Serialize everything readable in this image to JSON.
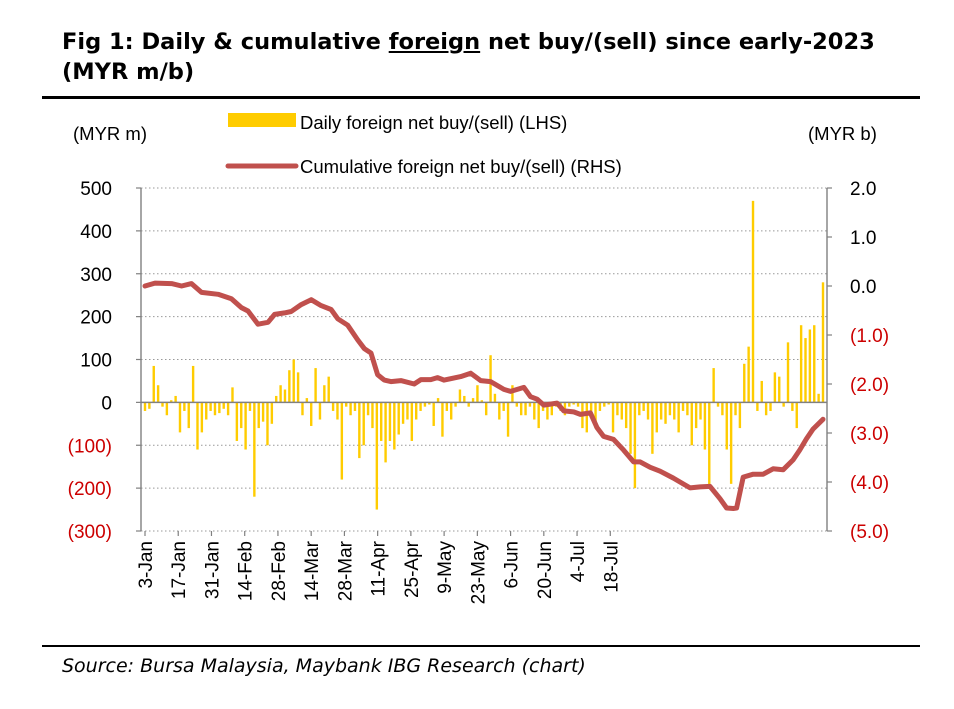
{
  "figure": {
    "title_prefix": "Fig 1: Daily & cumulative ",
    "title_emph": "foreign",
    "title_suffix": " net buy/(sell) since early-2023 (MYR m/b)",
    "source": "Source: Bursa Malaysia, Maybank IBG Research (chart)"
  },
  "chart_data": {
    "type": "bar",
    "left_axis": {
      "unit_label": "(MYR m)",
      "range": [
        -300,
        500
      ],
      "ticks": [
        500,
        400,
        300,
        200,
        100,
        0,
        -100,
        -200,
        -300
      ],
      "tick_labels": [
        "500",
        "400",
        "300",
        "200",
        "100",
        "0",
        "(100)",
        "(200)",
        "(300)"
      ]
    },
    "right_axis": {
      "unit_label": "(MYR b)",
      "range": [
        -5.0,
        2.0
      ],
      "ticks": [
        2.0,
        1.0,
        0.0,
        -1.0,
        -2.0,
        -3.0,
        -4.0,
        -5.0
      ],
      "tick_labels": [
        "2.0",
        "1.0",
        "0.0",
        "(1.0)",
        "(2.0)",
        "(3.0)",
        "(4.0)",
        "(5.0)"
      ]
    },
    "x_tick_labels": [
      "3-Jan",
      "17-Jan",
      "31-Jan",
      "14-Feb",
      "28-Feb",
      "14-Mar",
      "28-Mar",
      "11-Apr",
      "25-Apr",
      "9-May",
      "23-May",
      "6-Jun",
      "20-Jun",
      "4-Jul",
      "18-Jul"
    ],
    "grid": true,
    "legend_position": "top",
    "colors": {
      "bars": "#FFCC00",
      "line": "#C0504D",
      "negative_labels": "#CC0000"
    },
    "series": [
      {
        "name": "Daily foreign net buy/(sell) (LHS)",
        "type": "bar",
        "axis": "left",
        "values": [
          -20,
          -15,
          85,
          40,
          -10,
          -30,
          5,
          15,
          -70,
          -20,
          -60,
          85,
          -110,
          -70,
          -40,
          -20,
          -30,
          -25,
          -15,
          -30,
          35,
          -90,
          -60,
          -110,
          -20,
          -220,
          -60,
          -45,
          -100,
          -50,
          15,
          40,
          30,
          75,
          100,
          70,
          -30,
          10,
          -55,
          80,
          -40,
          40,
          60,
          -20,
          -40,
          -180,
          -10,
          -30,
          -20,
          -130,
          -100,
          -30,
          -60,
          -250,
          -90,
          -140,
          -90,
          -110,
          -75,
          -50,
          -40,
          -90,
          -40,
          -20,
          -10,
          -5,
          -55,
          10,
          -80,
          -20,
          -40,
          -10,
          30,
          15,
          -10,
          10,
          40,
          5,
          -30,
          110,
          20,
          -40,
          -20,
          -80,
          40,
          -10,
          -30,
          -30,
          -10,
          -40,
          -60,
          -20,
          -40,
          -30,
          -10,
          -20,
          -30,
          -10,
          -5,
          -10,
          -60,
          -70,
          -20,
          -60,
          -20,
          -10,
          -5,
          -70,
          -30,
          -40,
          -60,
          -120,
          -200,
          -30,
          -20,
          -40,
          -120,
          -70,
          -40,
          -50,
          -30,
          -40,
          -70,
          -20,
          -30,
          -100,
          -60,
          -40,
          -110,
          -200,
          80,
          -10,
          -30,
          -110,
          -190,
          -30,
          -60,
          90,
          130,
          470,
          -20,
          50,
          -30,
          -20,
          70,
          60,
          -10,
          140,
          -20,
          -60,
          180,
          150,
          170,
          180,
          20,
          280
        ],
        "note_values": "approximate daily values (MYR m), one per trading day from 3-Jan"
      },
      {
        "name": "Cumulative foreign net buy/(sell) (RHS)",
        "type": "line",
        "axis": "right",
        "points": [
          [
            0,
            0.0
          ],
          [
            3,
            0.06
          ],
          [
            8,
            0.05
          ],
          [
            11,
            0.0
          ],
          [
            14,
            0.05
          ],
          [
            17,
            -0.13
          ],
          [
            22,
            -0.17
          ],
          [
            26,
            -0.26
          ],
          [
            29,
            -0.44
          ],
          [
            31,
            -0.51
          ],
          [
            34,
            -0.78
          ],
          [
            37,
            -0.74
          ],
          [
            39,
            -0.58
          ],
          [
            42,
            -0.55
          ],
          [
            44,
            -0.52
          ],
          [
            47,
            -0.38
          ],
          [
            50,
            -0.28
          ],
          [
            53,
            -0.4
          ],
          [
            56,
            -0.48
          ],
          [
            58,
            -0.67
          ],
          [
            61,
            -0.8
          ],
          [
            64,
            -1.1
          ],
          [
            66,
            -1.28
          ],
          [
            68,
            -1.37
          ],
          [
            70,
            -1.81
          ],
          [
            72,
            -1.92
          ],
          [
            74,
            -1.95
          ],
          [
            77,
            -1.93
          ],
          [
            81,
            -2.0
          ],
          [
            83,
            -1.91
          ],
          [
            86,
            -1.91
          ],
          [
            88,
            -1.87
          ],
          [
            90,
            -1.92
          ],
          [
            95,
            -1.85
          ],
          [
            98,
            -1.78
          ],
          [
            101,
            -1.93
          ],
          [
            104,
            -1.95
          ],
          [
            108,
            -2.11
          ],
          [
            110,
            -2.15
          ],
          [
            114,
            -2.07
          ],
          [
            116,
            -2.26
          ],
          [
            118,
            -2.31
          ],
          [
            120,
            -2.43
          ],
          [
            124,
            -2.39
          ],
          [
            126,
            -2.55
          ],
          [
            129,
            -2.57
          ],
          [
            131,
            -2.62
          ],
          [
            134,
            -2.59
          ],
          [
            136,
            -2.89
          ],
          [
            138,
            -3.07
          ],
          [
            141,
            -3.13
          ],
          [
            144,
            -3.35
          ],
          [
            147,
            -3.59
          ],
          [
            149,
            -3.59
          ],
          [
            152,
            -3.7
          ],
          [
            155,
            -3.78
          ],
          [
            159,
            -3.92
          ],
          [
            162,
            -4.04
          ],
          [
            164,
            -4.12
          ],
          [
            167,
            -4.1
          ],
          [
            170,
            -4.09
          ],
          [
            173,
            -4.34
          ],
          [
            175,
            -4.53
          ],
          [
            177,
            -4.54
          ],
          [
            178,
            -4.53
          ],
          [
            180,
            -3.9
          ],
          [
            183,
            -3.84
          ],
          [
            186,
            -3.84
          ],
          [
            189,
            -3.73
          ],
          [
            192,
            -3.75
          ],
          [
            195,
            -3.55
          ],
          [
            197,
            -3.35
          ],
          [
            199,
            -3.12
          ],
          [
            201,
            -2.92
          ],
          [
            204,
            -2.72
          ]
        ],
        "note_points": "x = trading-day index from 3-Jan, y = MYR b"
      }
    ]
  }
}
